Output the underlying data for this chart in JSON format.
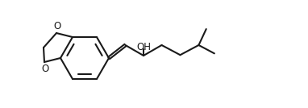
{
  "background": "#ffffff",
  "line_color": "#1a1a1a",
  "line_width": 1.5,
  "oh_label": "OH",
  "oh_fontsize": 8.5,
  "o_label": "O",
  "o_fontsize": 8.5,
  "figsize": [
    3.82,
    1.34
  ],
  "dpi": 100,
  "xlim": [
    0,
    382
  ],
  "ylim": [
    0,
    134
  ]
}
